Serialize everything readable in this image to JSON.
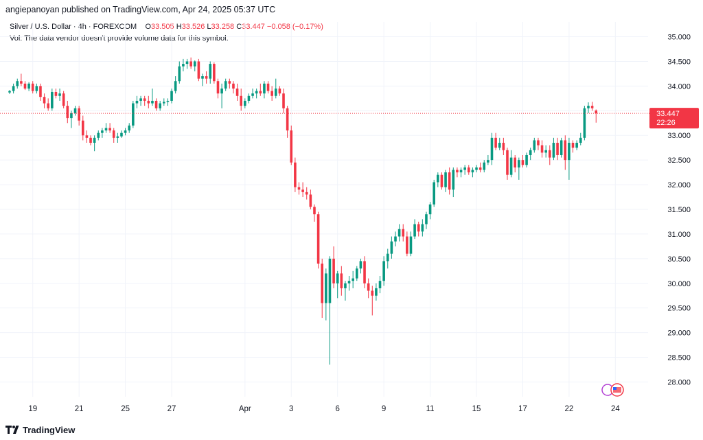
{
  "header": {
    "published_line": "angiepanoyan published on TradingView.com, Apr 24, 2025 05:37 UTC"
  },
  "legend": {
    "symbol": "Silver / U.S. Dollar · 4h · FOREXCOM",
    "o_label": "O",
    "o_value": "33.505",
    "h_label": "H",
    "h_value": "33.526",
    "l_label": "L",
    "l_value": "33.258",
    "c_label": "C",
    "c_value": "33.447",
    "change": "−0.058 (−0.17%)",
    "vol_note": "Vol: The data vendor doesn't provide volume data for this symbol."
  },
  "price_tag": {
    "price": "33.447",
    "countdown": "22:26"
  },
  "footer": {
    "brand": "TradingView"
  },
  "colors": {
    "up": "#089981",
    "down": "#f23645",
    "grid": "#f0f3fa",
    "axis_text": "#131722"
  },
  "chart_data": {
    "type": "candlestick",
    "title": "Silver / U.S. Dollar · 4h · FOREXCOM",
    "ylim": [
      27.7,
      35.3
    ],
    "y_ticks": [
      "35.000",
      "34.500",
      "34.000",
      "33.500",
      "33.000",
      "32.500",
      "32.000",
      "31.500",
      "31.000",
      "30.500",
      "30.000",
      "29.500",
      "29.000",
      "28.500",
      "28.000"
    ],
    "x_ticks": [
      {
        "label": "19",
        "bar": 6
      },
      {
        "label": "21",
        "bar": 18
      },
      {
        "label": "25",
        "bar": 30
      },
      {
        "label": "27",
        "bar": 42
      },
      {
        "label": "Apr",
        "bar": 61
      },
      {
        "label": "3",
        "bar": 73
      },
      {
        "label": "6",
        "bar": 85
      },
      {
        "label": "9",
        "bar": 97
      },
      {
        "label": "11",
        "bar": 109
      },
      {
        "label": "15",
        "bar": 121
      },
      {
        "label": "17",
        "bar": 133
      },
      {
        "label": "22",
        "bar": 145
      },
      {
        "label": "24",
        "bar": 157
      }
    ],
    "last_price": 33.447,
    "grid": true,
    "candles": [
      {
        "o": 33.87,
        "h": 33.92,
        "l": 33.84,
        "c": 33.9
      },
      {
        "o": 33.9,
        "h": 34.05,
        "l": 33.85,
        "c": 34.0
      },
      {
        "o": 34.0,
        "h": 34.15,
        "l": 33.95,
        "c": 34.1
      },
      {
        "o": 34.1,
        "h": 34.25,
        "l": 34.0,
        "c": 34.05
      },
      {
        "o": 34.05,
        "h": 34.1,
        "l": 33.92,
        "c": 33.95
      },
      {
        "o": 33.95,
        "h": 34.08,
        "l": 33.9,
        "c": 34.05
      },
      {
        "o": 34.05,
        "h": 34.1,
        "l": 33.85,
        "c": 33.9
      },
      {
        "o": 33.9,
        "h": 34.05,
        "l": 33.85,
        "c": 34.0
      },
      {
        "o": 34.0,
        "h": 34.05,
        "l": 33.7,
        "c": 33.78
      },
      {
        "o": 33.78,
        "h": 33.85,
        "l": 33.55,
        "c": 33.65
      },
      {
        "o": 33.65,
        "h": 33.75,
        "l": 33.5,
        "c": 33.55
      },
      {
        "o": 33.55,
        "h": 33.95,
        "l": 33.5,
        "c": 33.88
      },
      {
        "o": 33.88,
        "h": 33.95,
        "l": 33.75,
        "c": 33.8
      },
      {
        "o": 33.8,
        "h": 33.95,
        "l": 33.7,
        "c": 33.85
      },
      {
        "o": 33.85,
        "h": 33.9,
        "l": 33.55,
        "c": 33.6
      },
      {
        "o": 33.6,
        "h": 33.7,
        "l": 33.25,
        "c": 33.35
      },
      {
        "o": 33.35,
        "h": 33.5,
        "l": 33.15,
        "c": 33.45
      },
      {
        "o": 33.45,
        "h": 33.6,
        "l": 33.4,
        "c": 33.55
      },
      {
        "o": 33.55,
        "h": 33.6,
        "l": 33.2,
        "c": 33.3
      },
      {
        "o": 33.3,
        "h": 33.4,
        "l": 32.9,
        "c": 33.0
      },
      {
        "o": 33.0,
        "h": 33.1,
        "l": 32.85,
        "c": 32.95
      },
      {
        "o": 32.95,
        "h": 33.0,
        "l": 32.8,
        "c": 32.85
      },
      {
        "o": 32.85,
        "h": 33.0,
        "l": 32.68,
        "c": 32.95
      },
      {
        "o": 32.95,
        "h": 33.1,
        "l": 32.9,
        "c": 33.05
      },
      {
        "o": 33.05,
        "h": 33.15,
        "l": 32.95,
        "c": 33.1
      },
      {
        "o": 33.1,
        "h": 33.25,
        "l": 33.05,
        "c": 33.15
      },
      {
        "o": 33.15,
        "h": 33.25,
        "l": 33.05,
        "c": 33.1
      },
      {
        "o": 33.1,
        "h": 33.15,
        "l": 32.85,
        "c": 32.95
      },
      {
        "o": 32.95,
        "h": 33.05,
        "l": 32.85,
        "c": 32.98
      },
      {
        "o": 32.98,
        "h": 33.1,
        "l": 32.95,
        "c": 33.05
      },
      {
        "o": 33.05,
        "h": 33.15,
        "l": 33.0,
        "c": 33.1
      },
      {
        "o": 33.1,
        "h": 33.25,
        "l": 33.05,
        "c": 33.2
      },
      {
        "o": 33.2,
        "h": 33.7,
        "l": 33.15,
        "c": 33.65
      },
      {
        "o": 33.65,
        "h": 33.8,
        "l": 33.55,
        "c": 33.7
      },
      {
        "o": 33.7,
        "h": 33.8,
        "l": 33.6,
        "c": 33.75
      },
      {
        "o": 33.75,
        "h": 33.8,
        "l": 33.6,
        "c": 33.7
      },
      {
        "o": 33.7,
        "h": 33.8,
        "l": 33.55,
        "c": 33.65
      },
      {
        "o": 33.65,
        "h": 33.95,
        "l": 33.6,
        "c": 33.7
      },
      {
        "o": 33.7,
        "h": 33.75,
        "l": 33.5,
        "c": 33.55
      },
      {
        "o": 33.55,
        "h": 33.7,
        "l": 33.5,
        "c": 33.65
      },
      {
        "o": 33.65,
        "h": 33.75,
        "l": 33.6,
        "c": 33.68
      },
      {
        "o": 33.68,
        "h": 33.75,
        "l": 33.6,
        "c": 33.7
      },
      {
        "o": 33.7,
        "h": 33.95,
        "l": 33.65,
        "c": 33.9
      },
      {
        "o": 33.9,
        "h": 34.2,
        "l": 33.85,
        "c": 34.1
      },
      {
        "o": 34.1,
        "h": 34.5,
        "l": 34.05,
        "c": 34.4
      },
      {
        "o": 34.4,
        "h": 34.55,
        "l": 34.3,
        "c": 34.45
      },
      {
        "o": 34.45,
        "h": 34.55,
        "l": 34.35,
        "c": 34.5
      },
      {
        "o": 34.5,
        "h": 34.58,
        "l": 34.35,
        "c": 34.4
      },
      {
        "o": 34.4,
        "h": 34.52,
        "l": 34.3,
        "c": 34.5
      },
      {
        "o": 34.5,
        "h": 34.55,
        "l": 34.1,
        "c": 34.15
      },
      {
        "o": 34.15,
        "h": 34.25,
        "l": 34.0,
        "c": 34.2
      },
      {
        "o": 34.2,
        "h": 34.3,
        "l": 34.05,
        "c": 34.15
      },
      {
        "o": 34.15,
        "h": 34.5,
        "l": 34.05,
        "c": 34.45
      },
      {
        "o": 34.45,
        "h": 34.48,
        "l": 34.05,
        "c": 34.1
      },
      {
        "o": 34.1,
        "h": 34.15,
        "l": 33.75,
        "c": 33.85
      },
      {
        "o": 33.85,
        "h": 34.05,
        "l": 33.55,
        "c": 33.95
      },
      {
        "o": 33.95,
        "h": 34.15,
        "l": 33.9,
        "c": 34.1
      },
      {
        "o": 34.1,
        "h": 34.15,
        "l": 33.95,
        "c": 34.05
      },
      {
        "o": 34.05,
        "h": 34.1,
        "l": 33.85,
        "c": 33.95
      },
      {
        "o": 33.95,
        "h": 34.05,
        "l": 33.7,
        "c": 33.8
      },
      {
        "o": 33.8,
        "h": 33.95,
        "l": 33.5,
        "c": 33.6
      },
      {
        "o": 33.6,
        "h": 33.75,
        "l": 33.55,
        "c": 33.7
      },
      {
        "o": 33.7,
        "h": 33.85,
        "l": 33.65,
        "c": 33.8
      },
      {
        "o": 33.8,
        "h": 33.95,
        "l": 33.75,
        "c": 33.85
      },
      {
        "o": 33.85,
        "h": 33.95,
        "l": 33.75,
        "c": 33.9
      },
      {
        "o": 33.9,
        "h": 34.05,
        "l": 33.8,
        "c": 33.85
      },
      {
        "o": 33.85,
        "h": 34.1,
        "l": 33.75,
        "c": 34.05
      },
      {
        "o": 34.05,
        "h": 34.1,
        "l": 33.85,
        "c": 33.9
      },
      {
        "o": 33.9,
        "h": 34.0,
        "l": 33.7,
        "c": 33.8
      },
      {
        "o": 33.8,
        "h": 34.15,
        "l": 33.75,
        "c": 33.95
      },
      {
        "o": 33.95,
        "h": 34.0,
        "l": 33.8,
        "c": 33.85
      },
      {
        "o": 33.85,
        "h": 33.95,
        "l": 33.45,
        "c": 33.55
      },
      {
        "o": 33.55,
        "h": 33.6,
        "l": 32.95,
        "c": 33.1
      },
      {
        "o": 33.1,
        "h": 33.2,
        "l": 32.4,
        "c": 32.45
      },
      {
        "o": 32.45,
        "h": 32.55,
        "l": 31.85,
        "c": 31.95
      },
      {
        "o": 31.95,
        "h": 32.05,
        "l": 31.8,
        "c": 31.9
      },
      {
        "o": 31.9,
        "h": 32.05,
        "l": 31.75,
        "c": 31.85
      },
      {
        "o": 31.85,
        "h": 31.95,
        "l": 31.7,
        "c": 31.8
      },
      {
        "o": 31.8,
        "h": 31.9,
        "l": 31.5,
        "c": 31.55
      },
      {
        "o": 31.55,
        "h": 31.6,
        "l": 31.25,
        "c": 31.4
      },
      {
        "o": 31.4,
        "h": 31.45,
        "l": 30.3,
        "c": 30.4
      },
      {
        "o": 30.4,
        "h": 30.5,
        "l": 29.3,
        "c": 29.6
      },
      {
        "o": 29.6,
        "h": 30.3,
        "l": 29.25,
        "c": 30.2
      },
      {
        "o": 29.6,
        "h": 30.55,
        "l": 28.35,
        "c": 30.5
      },
      {
        "o": 30.5,
        "h": 30.75,
        "l": 29.9,
        "c": 30.0
      },
      {
        "o": 30.0,
        "h": 30.25,
        "l": 29.7,
        "c": 30.2
      },
      {
        "o": 30.2,
        "h": 30.35,
        "l": 29.75,
        "c": 29.9
      },
      {
        "o": 29.9,
        "h": 30.05,
        "l": 29.65,
        "c": 30.0
      },
      {
        "o": 30.0,
        "h": 30.15,
        "l": 29.85,
        "c": 30.05
      },
      {
        "o": 30.05,
        "h": 30.25,
        "l": 29.9,
        "c": 30.1
      },
      {
        "o": 30.1,
        "h": 30.35,
        "l": 30.05,
        "c": 30.3
      },
      {
        "o": 30.3,
        "h": 30.5,
        "l": 30.2,
        "c": 30.45
      },
      {
        "o": 30.45,
        "h": 30.55,
        "l": 29.9,
        "c": 30.0
      },
      {
        "o": 30.0,
        "h": 30.1,
        "l": 29.7,
        "c": 29.85
      },
      {
        "o": 29.85,
        "h": 29.95,
        "l": 29.35,
        "c": 29.75
      },
      {
        "o": 29.75,
        "h": 30.0,
        "l": 29.65,
        "c": 29.9
      },
      {
        "o": 29.9,
        "h": 30.15,
        "l": 29.8,
        "c": 30.05
      },
      {
        "o": 30.05,
        "h": 30.55,
        "l": 29.95,
        "c": 30.45
      },
      {
        "o": 30.45,
        "h": 30.7,
        "l": 30.3,
        "c": 30.6
      },
      {
        "o": 30.6,
        "h": 30.95,
        "l": 30.5,
        "c": 30.85
      },
      {
        "o": 30.85,
        "h": 31.05,
        "l": 30.75,
        "c": 30.95
      },
      {
        "o": 30.95,
        "h": 31.2,
        "l": 30.85,
        "c": 31.1
      },
      {
        "o": 31.1,
        "h": 31.2,
        "l": 30.85,
        "c": 30.95
      },
      {
        "o": 30.95,
        "h": 31.05,
        "l": 30.55,
        "c": 30.6
      },
      {
        "o": 30.6,
        "h": 31.05,
        "l": 30.55,
        "c": 30.95
      },
      {
        "o": 30.95,
        "h": 31.3,
        "l": 30.9,
        "c": 31.2
      },
      {
        "o": 31.2,
        "h": 31.25,
        "l": 30.95,
        "c": 31.05
      },
      {
        "o": 31.05,
        "h": 31.3,
        "l": 30.95,
        "c": 31.2
      },
      {
        "o": 31.2,
        "h": 31.45,
        "l": 31.1,
        "c": 31.4
      },
      {
        "o": 31.4,
        "h": 31.65,
        "l": 31.3,
        "c": 31.6
      },
      {
        "o": 31.6,
        "h": 32.1,
        "l": 31.55,
        "c": 32.05
      },
      {
        "o": 32.05,
        "h": 32.25,
        "l": 31.95,
        "c": 32.2
      },
      {
        "o": 32.2,
        "h": 32.25,
        "l": 31.9,
        "c": 31.95
      },
      {
        "o": 31.95,
        "h": 32.3,
        "l": 31.85,
        "c": 32.25
      },
      {
        "o": 32.25,
        "h": 32.35,
        "l": 31.8,
        "c": 31.9
      },
      {
        "o": 31.9,
        "h": 32.35,
        "l": 31.75,
        "c": 32.3
      },
      {
        "o": 32.3,
        "h": 32.35,
        "l": 32.15,
        "c": 32.25
      },
      {
        "o": 32.25,
        "h": 32.35,
        "l": 32.15,
        "c": 32.3
      },
      {
        "o": 32.3,
        "h": 32.4,
        "l": 32.2,
        "c": 32.35
      },
      {
        "o": 32.35,
        "h": 32.4,
        "l": 32.2,
        "c": 32.25
      },
      {
        "o": 32.25,
        "h": 32.35,
        "l": 32.15,
        "c": 32.3
      },
      {
        "o": 32.3,
        "h": 32.4,
        "l": 32.25,
        "c": 32.35
      },
      {
        "o": 32.35,
        "h": 32.45,
        "l": 32.25,
        "c": 32.3
      },
      {
        "o": 32.3,
        "h": 32.5,
        "l": 32.25,
        "c": 32.45
      },
      {
        "o": 32.45,
        "h": 32.6,
        "l": 32.4,
        "c": 32.5
      },
      {
        "o": 32.5,
        "h": 33.05,
        "l": 32.4,
        "c": 32.95
      },
      {
        "o": 32.95,
        "h": 33.05,
        "l": 32.7,
        "c": 32.75
      },
      {
        "o": 32.75,
        "h": 32.95,
        "l": 32.7,
        "c": 32.85
      },
      {
        "o": 32.85,
        "h": 32.95,
        "l": 32.6,
        "c": 32.7
      },
      {
        "o": 32.7,
        "h": 32.75,
        "l": 32.1,
        "c": 32.2
      },
      {
        "o": 32.2,
        "h": 32.7,
        "l": 32.15,
        "c": 32.55
      },
      {
        "o": 32.55,
        "h": 32.6,
        "l": 32.25,
        "c": 32.35
      },
      {
        "o": 32.35,
        "h": 32.55,
        "l": 32.1,
        "c": 32.5
      },
      {
        "o": 32.5,
        "h": 32.6,
        "l": 32.35,
        "c": 32.4
      },
      {
        "o": 32.4,
        "h": 32.65,
        "l": 32.35,
        "c": 32.6
      },
      {
        "o": 32.6,
        "h": 32.75,
        "l": 32.5,
        "c": 32.7
      },
      {
        "o": 32.7,
        "h": 32.95,
        "l": 32.65,
        "c": 32.9
      },
      {
        "o": 32.9,
        "h": 32.95,
        "l": 32.7,
        "c": 32.8
      },
      {
        "o": 32.8,
        "h": 32.9,
        "l": 32.55,
        "c": 32.65
      },
      {
        "o": 32.65,
        "h": 32.8,
        "l": 32.55,
        "c": 32.7
      },
      {
        "o": 32.7,
        "h": 32.8,
        "l": 32.4,
        "c": 32.55
      },
      {
        "o": 32.55,
        "h": 32.95,
        "l": 32.5,
        "c": 32.85
      },
      {
        "o": 32.85,
        "h": 32.95,
        "l": 32.5,
        "c": 32.6
      },
      {
        "o": 32.6,
        "h": 32.95,
        "l": 32.55,
        "c": 32.9
      },
      {
        "o": 32.9,
        "h": 33.0,
        "l": 32.3,
        "c": 32.5
      },
      {
        "o": 32.5,
        "h": 32.95,
        "l": 32.1,
        "c": 32.85
      },
      {
        "o": 32.85,
        "h": 32.9,
        "l": 32.65,
        "c": 32.75
      },
      {
        "o": 32.75,
        "h": 32.9,
        "l": 32.7,
        "c": 32.85
      },
      {
        "o": 32.85,
        "h": 33.05,
        "l": 32.8,
        "c": 32.95
      },
      {
        "o": 32.95,
        "h": 33.6,
        "l": 32.9,
        "c": 33.55
      },
      {
        "o": 33.55,
        "h": 33.67,
        "l": 33.45,
        "c": 33.6
      },
      {
        "o": 33.6,
        "h": 33.68,
        "l": 33.5,
        "c": 33.55
      },
      {
        "o": 33.505,
        "h": 33.526,
        "l": 33.258,
        "c": 33.447
      }
    ]
  }
}
